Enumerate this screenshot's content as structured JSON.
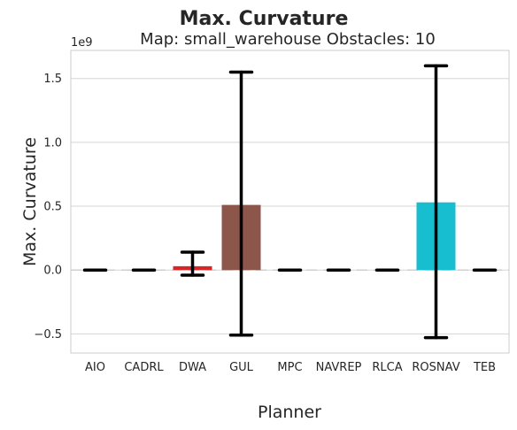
{
  "chart_data": {
    "type": "bar",
    "title": "Max. Curvature",
    "subtitle": "Map: small_warehouse Obstacles: 10",
    "xlabel": "Planner",
    "ylabel": "Max. Curvature",
    "y_offset_label": "1e9",
    "categories": [
      "AIO",
      "CADRL",
      "DWA",
      "GUL",
      "MPC",
      "NAVREP",
      "RLCA",
      "ROSNAV",
      "TEB"
    ],
    "values": [
      0.0,
      0.0,
      0.03,
      0.51,
      0.0,
      0.0,
      0.0,
      0.53,
      0.0
    ],
    "error_low": [
      0.0,
      0.0,
      -0.04,
      -0.51,
      0.0,
      0.0,
      0.0,
      -0.53,
      0.0
    ],
    "error_high": [
      0.0,
      0.0,
      0.14,
      1.55,
      0.0,
      0.0,
      0.0,
      1.6,
      0.0
    ],
    "colors": [
      "#1f77b4",
      "#ff7f0e",
      "#d62728",
      "#8c564b",
      "#e377c2",
      "#7f7f7f",
      "#bcbd22",
      "#17becf",
      "#9467bd"
    ],
    "ylim": [
      -0.65,
      1.72
    ],
    "yticks": [
      -0.5,
      0.0,
      0.5,
      1.0,
      1.5
    ],
    "ytick_labels": [
      "−0.5",
      "0.0",
      "0.5",
      "1.0",
      "1.5"
    ],
    "grid": true
  }
}
